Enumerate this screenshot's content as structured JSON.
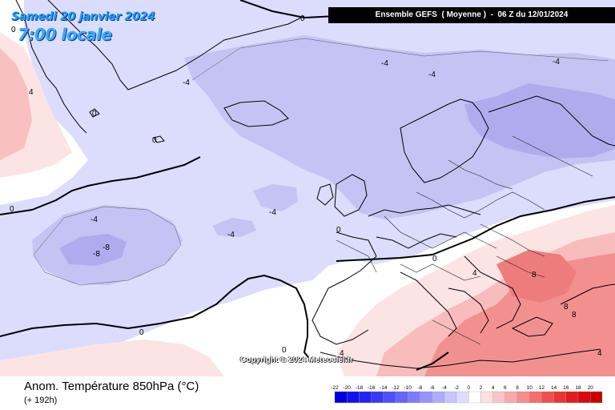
{
  "title": {
    "date": "Samedi 20 janvier 2024",
    "local_time": "7:00 locale"
  },
  "header": {
    "run_info": "Ensemble GEFS  ( Moyenne )  -  06 Z du 12/01/2024"
  },
  "variable": {
    "name": "Anom. Température 850hPa (°C)",
    "lead_time": "(+ 192h)"
  },
  "copyright": "Copyright © 2024 Meteociel.fr",
  "contour_labels": [
    "0",
    "0",
    "0",
    "0",
    "0",
    "0",
    "0",
    "0",
    "0",
    "-4",
    "-4",
    "-4",
    "-4",
    "-4",
    "-4",
    "-4",
    "-8",
    "-8",
    "4",
    "4",
    "4",
    "4",
    "8",
    "8",
    "8"
  ],
  "legend": {
    "ticks": [
      "-22",
      "-20",
      "-18",
      "-16",
      "-14",
      "-12",
      "-10",
      "-8",
      "-6",
      "-4",
      "-2",
      "0",
      "2",
      "4",
      "6",
      "8",
      "10",
      "12",
      "14",
      "16",
      "18",
      "20"
    ],
    "colors": [
      "#0000dd",
      "#1010ee",
      "#2323f5",
      "#3838f8",
      "#4f4ffa",
      "#6565fb",
      "#7c7cfb",
      "#9494fb",
      "#adadfb",
      "#c6c6fc",
      "#dedefd",
      "#ffffff",
      "#fde0e0",
      "#fbc5c5",
      "#f9a9a9",
      "#f78c8c",
      "#f46e6e",
      "#f05050",
      "#ea3434",
      "#e21c1c",
      "#d60a0a",
      "#c80000"
    ]
  },
  "colors": {
    "cold_light": "#dcdcfc",
    "cold_medium": "#c3c3f4",
    "cold_strong": "#a9a9ee",
    "warm_light": "#fde4e4",
    "warm_medium": "#f8b8b8",
    "warm_strong": "#f08484",
    "neutral": "#ffffff",
    "title_blue": "#1ea0ff"
  }
}
